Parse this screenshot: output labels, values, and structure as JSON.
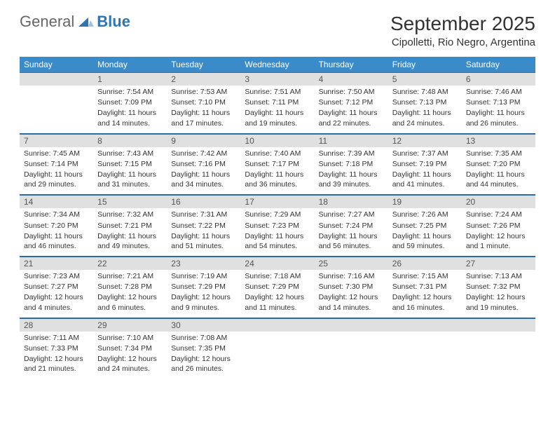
{
  "logo": {
    "part1": "General",
    "part2": "Blue"
  },
  "title": "September 2025",
  "location": "Cipolletti, Rio Negro, Argentina",
  "colors": {
    "header_bg": "#3b8bc9",
    "header_text": "#ffffff",
    "daynum_bg": "#e0e0e0",
    "border": "#2e6da4",
    "logo_blue": "#2e75b6"
  },
  "weekdays": [
    "Sunday",
    "Monday",
    "Tuesday",
    "Wednesday",
    "Thursday",
    "Friday",
    "Saturday"
  ],
  "weeks": [
    [
      {
        "n": "",
        "sunrise": "",
        "sunset": "",
        "daylight": ""
      },
      {
        "n": "1",
        "sunrise": "Sunrise: 7:54 AM",
        "sunset": "Sunset: 7:09 PM",
        "daylight": "Daylight: 11 hours and 14 minutes."
      },
      {
        "n": "2",
        "sunrise": "Sunrise: 7:53 AM",
        "sunset": "Sunset: 7:10 PM",
        "daylight": "Daylight: 11 hours and 17 minutes."
      },
      {
        "n": "3",
        "sunrise": "Sunrise: 7:51 AM",
        "sunset": "Sunset: 7:11 PM",
        "daylight": "Daylight: 11 hours and 19 minutes."
      },
      {
        "n": "4",
        "sunrise": "Sunrise: 7:50 AM",
        "sunset": "Sunset: 7:12 PM",
        "daylight": "Daylight: 11 hours and 22 minutes."
      },
      {
        "n": "5",
        "sunrise": "Sunrise: 7:48 AM",
        "sunset": "Sunset: 7:13 PM",
        "daylight": "Daylight: 11 hours and 24 minutes."
      },
      {
        "n": "6",
        "sunrise": "Sunrise: 7:46 AM",
        "sunset": "Sunset: 7:13 PM",
        "daylight": "Daylight: 11 hours and 26 minutes."
      }
    ],
    [
      {
        "n": "7",
        "sunrise": "Sunrise: 7:45 AM",
        "sunset": "Sunset: 7:14 PM",
        "daylight": "Daylight: 11 hours and 29 minutes."
      },
      {
        "n": "8",
        "sunrise": "Sunrise: 7:43 AM",
        "sunset": "Sunset: 7:15 PM",
        "daylight": "Daylight: 11 hours and 31 minutes."
      },
      {
        "n": "9",
        "sunrise": "Sunrise: 7:42 AM",
        "sunset": "Sunset: 7:16 PM",
        "daylight": "Daylight: 11 hours and 34 minutes."
      },
      {
        "n": "10",
        "sunrise": "Sunrise: 7:40 AM",
        "sunset": "Sunset: 7:17 PM",
        "daylight": "Daylight: 11 hours and 36 minutes."
      },
      {
        "n": "11",
        "sunrise": "Sunrise: 7:39 AM",
        "sunset": "Sunset: 7:18 PM",
        "daylight": "Daylight: 11 hours and 39 minutes."
      },
      {
        "n": "12",
        "sunrise": "Sunrise: 7:37 AM",
        "sunset": "Sunset: 7:19 PM",
        "daylight": "Daylight: 11 hours and 41 minutes."
      },
      {
        "n": "13",
        "sunrise": "Sunrise: 7:35 AM",
        "sunset": "Sunset: 7:20 PM",
        "daylight": "Daylight: 11 hours and 44 minutes."
      }
    ],
    [
      {
        "n": "14",
        "sunrise": "Sunrise: 7:34 AM",
        "sunset": "Sunset: 7:20 PM",
        "daylight": "Daylight: 11 hours and 46 minutes."
      },
      {
        "n": "15",
        "sunrise": "Sunrise: 7:32 AM",
        "sunset": "Sunset: 7:21 PM",
        "daylight": "Daylight: 11 hours and 49 minutes."
      },
      {
        "n": "16",
        "sunrise": "Sunrise: 7:31 AM",
        "sunset": "Sunset: 7:22 PM",
        "daylight": "Daylight: 11 hours and 51 minutes."
      },
      {
        "n": "17",
        "sunrise": "Sunrise: 7:29 AM",
        "sunset": "Sunset: 7:23 PM",
        "daylight": "Daylight: 11 hours and 54 minutes."
      },
      {
        "n": "18",
        "sunrise": "Sunrise: 7:27 AM",
        "sunset": "Sunset: 7:24 PM",
        "daylight": "Daylight: 11 hours and 56 minutes."
      },
      {
        "n": "19",
        "sunrise": "Sunrise: 7:26 AM",
        "sunset": "Sunset: 7:25 PM",
        "daylight": "Daylight: 11 hours and 59 minutes."
      },
      {
        "n": "20",
        "sunrise": "Sunrise: 7:24 AM",
        "sunset": "Sunset: 7:26 PM",
        "daylight": "Daylight: 12 hours and 1 minute."
      }
    ],
    [
      {
        "n": "21",
        "sunrise": "Sunrise: 7:23 AM",
        "sunset": "Sunset: 7:27 PM",
        "daylight": "Daylight: 12 hours and 4 minutes."
      },
      {
        "n": "22",
        "sunrise": "Sunrise: 7:21 AM",
        "sunset": "Sunset: 7:28 PM",
        "daylight": "Daylight: 12 hours and 6 minutes."
      },
      {
        "n": "23",
        "sunrise": "Sunrise: 7:19 AM",
        "sunset": "Sunset: 7:29 PM",
        "daylight": "Daylight: 12 hours and 9 minutes."
      },
      {
        "n": "24",
        "sunrise": "Sunrise: 7:18 AM",
        "sunset": "Sunset: 7:29 PM",
        "daylight": "Daylight: 12 hours and 11 minutes."
      },
      {
        "n": "25",
        "sunrise": "Sunrise: 7:16 AM",
        "sunset": "Sunset: 7:30 PM",
        "daylight": "Daylight: 12 hours and 14 minutes."
      },
      {
        "n": "26",
        "sunrise": "Sunrise: 7:15 AM",
        "sunset": "Sunset: 7:31 PM",
        "daylight": "Daylight: 12 hours and 16 minutes."
      },
      {
        "n": "27",
        "sunrise": "Sunrise: 7:13 AM",
        "sunset": "Sunset: 7:32 PM",
        "daylight": "Daylight: 12 hours and 19 minutes."
      }
    ],
    [
      {
        "n": "28",
        "sunrise": "Sunrise: 7:11 AM",
        "sunset": "Sunset: 7:33 PM",
        "daylight": "Daylight: 12 hours and 21 minutes."
      },
      {
        "n": "29",
        "sunrise": "Sunrise: 7:10 AM",
        "sunset": "Sunset: 7:34 PM",
        "daylight": "Daylight: 12 hours and 24 minutes."
      },
      {
        "n": "30",
        "sunrise": "Sunrise: 7:08 AM",
        "sunset": "Sunset: 7:35 PM",
        "daylight": "Daylight: 12 hours and 26 minutes."
      },
      {
        "n": "",
        "sunrise": "",
        "sunset": "",
        "daylight": ""
      },
      {
        "n": "",
        "sunrise": "",
        "sunset": "",
        "daylight": ""
      },
      {
        "n": "",
        "sunrise": "",
        "sunset": "",
        "daylight": ""
      },
      {
        "n": "",
        "sunrise": "",
        "sunset": "",
        "daylight": ""
      }
    ]
  ]
}
